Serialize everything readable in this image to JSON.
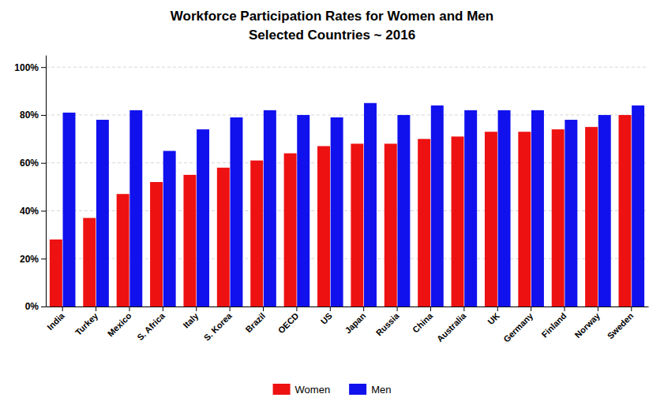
{
  "chart_data": {
    "type": "bar",
    "title": "Workforce Participation  Rates for Women and Men",
    "subtitle": "Selected Countries  ~ 2016",
    "categories": [
      "India",
      "Turkey",
      "Mexico",
      "S. Africa",
      "Italy",
      "S. Korea",
      "Brazil",
      "OECD",
      "US",
      "Japan",
      "Russia",
      "China",
      "Australia",
      "UK",
      "Germany",
      "Finland",
      "Norway",
      "Sweden"
    ],
    "series": [
      {
        "name": "Women",
        "color": "#ee1111",
        "values": [
          28,
          37,
          47,
          52,
          55,
          58,
          61,
          64,
          67,
          68,
          68,
          70,
          71,
          73,
          73,
          74,
          75,
          80
        ]
      },
      {
        "name": "Men",
        "color": "#1111ee",
        "values": [
          81,
          78,
          82,
          65,
          74,
          79,
          82,
          80,
          79,
          85,
          80,
          84,
          82,
          82,
          82,
          78,
          80,
          84
        ]
      }
    ],
    "ylim": [
      0,
      105
    ],
    "yticks": [
      {
        "value": 0,
        "label": "0%"
      },
      {
        "value": 20,
        "label": "20%"
      },
      {
        "value": 40,
        "label": "40%"
      },
      {
        "value": 60,
        "label": "60%"
      },
      {
        "value": 80,
        "label": "80%"
      },
      {
        "value": 100,
        "label": "100%"
      }
    ],
    "grid": true,
    "legend": "bottom"
  }
}
